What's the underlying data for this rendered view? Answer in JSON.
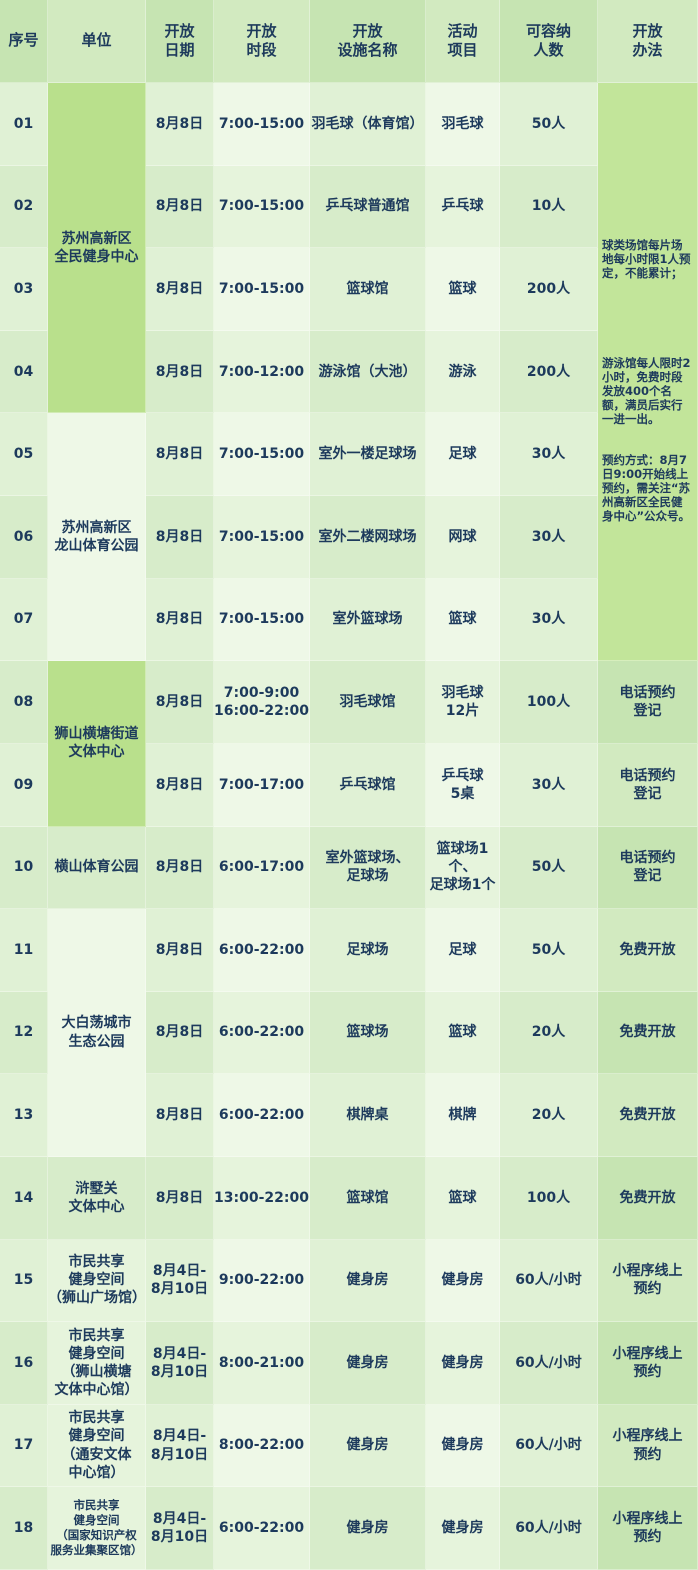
{
  "header": [
    "序号",
    "单位",
    "开放\n日期",
    "开放\n时段",
    "开放\n设施名称",
    "活动\n项目",
    "可容纳\n人数",
    "开放\n办法"
  ],
  "units": [
    "苏州高新区\n全民健身中心",
    "苏州高新区\n龙山体育公园",
    "狮山横塘街道\n文体中心",
    "横山体育公园",
    "大白荡城市\n生态公园",
    "浒墅关\n文体中心",
    "市民共享\n健身空间\n（狮山广场馆）",
    "市民共享\n健身空间\n（狮山横塘\n文体中心馆）",
    "市民共享\n健身空间\n（通安文体\n中心馆）",
    "市民共享\n健身空间\n（国家知识产权\n服务业集聚区馆）"
  ],
  "rows": [
    [
      "01",
      "8月8日",
      "7:00-15:00",
      "羽毛球（体育馆）",
      "羽毛球",
      "50人"
    ],
    [
      "02",
      "8月8日",
      "7:00-15:00",
      "乒乓球普通馆",
      "乒乓球",
      "10人"
    ],
    [
      "03",
      "8月8日",
      "7:00-15:00",
      "篮球馆",
      "篮球",
      "200人"
    ],
    [
      "04",
      "8月8日",
      "7:00-12:00",
      "游泳馆（大池）",
      "游泳",
      "200人"
    ],
    [
      "05",
      "8月8日",
      "7:00-15:00",
      "室外一楼足球场",
      "足球",
      "30人"
    ],
    [
      "06",
      "8月8日",
      "7:00-15:00",
      "室外二楼网球场",
      "网球",
      "30人"
    ],
    [
      "07",
      "8月8日",
      "7:00-15:00",
      "室外篮球场",
      "篮球",
      "30人"
    ],
    [
      "08",
      "8月8日",
      "7:00-9:00\n16:00-22:00",
      "羽毛球馆",
      "羽毛球\n12片",
      "100人"
    ],
    [
      "09",
      "8月8日",
      "7:00-17:00",
      "乒乓球馆",
      "乒乓球\n5桌",
      "30人"
    ],
    [
      "10",
      "8月8日",
      "6:00-17:00",
      "室外篮球场、\n足球场",
      "篮球场1个、\n足球场1个",
      "50人"
    ],
    [
      "11",
      "8月8日",
      "6:00-22:00",
      "足球场",
      "足球",
      "50人"
    ],
    [
      "12",
      "8月8日",
      "6:00-22:00",
      "篮球场",
      "篮球",
      "20人"
    ],
    [
      "13",
      "8月8日",
      "6:00-22:00",
      "棋牌桌",
      "棋牌",
      "20人"
    ],
    [
      "14",
      "8月8日",
      "13:00-22:00",
      "篮球馆",
      "篮球",
      "100人"
    ],
    [
      "15",
      "8月4日-\n8月10日",
      "9:00-22:00",
      "健身房",
      "健身房",
      "60人/小时"
    ],
    [
      "16",
      "8月4日-\n8月10日",
      "8:00-21:00",
      "健身房",
      "健身房",
      "60人/小时"
    ],
    [
      "17",
      "8月4日-\n8月10日",
      "8:00-22:00",
      "健身房",
      "健身房",
      "60人/小时"
    ],
    [
      "18",
      "8月4日-\n8月10日",
      "6:00-22:00",
      "健身房",
      "健身房",
      "60人/小时"
    ]
  ],
  "method_notes": [
    "球类场馆每片场地每小时限1人预定，不能累计；",
    "游泳馆每人限时2小时，免费时段发放400个名额，满员后实行一进一出。",
    "预约方式：8月7日9:00开始线上预约，需关注“苏州高新区全民健身中心”公众号。"
  ],
  "methods": [
    "电话预约\n登记",
    "电话预约\n登记",
    "电话预约\n登记",
    "免费开放",
    "免费开放",
    "免费开放",
    "免费开放",
    "小程序线上\n预约",
    "小程序线上\n预约",
    "小程序线上\n预约",
    "小程序线上\n预约"
  ]
}
